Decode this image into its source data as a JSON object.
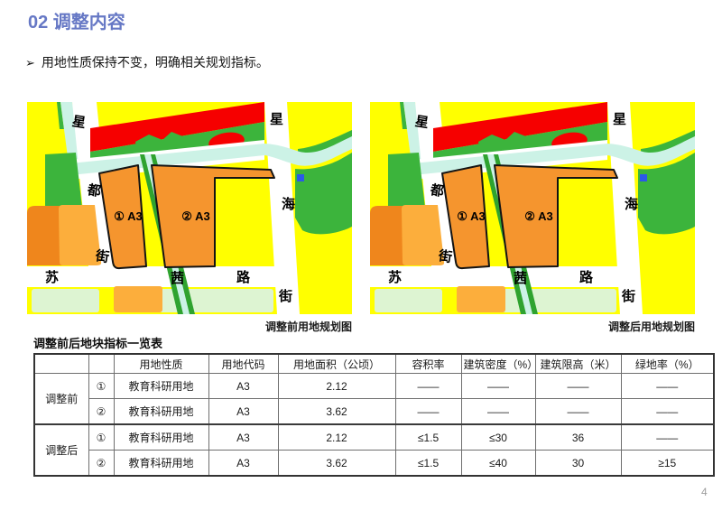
{
  "title": "02 调整内容",
  "bullet": {
    "arrow": "➢",
    "text": "用地性质保持不变，明确相关规划指标。"
  },
  "maps": {
    "before_caption": "调整前用地规划图",
    "after_caption": "调整后用地规划图",
    "street_labels": {
      "left_road": [
        "星",
        "都",
        "街"
      ],
      "right_road": [
        "星",
        "海",
        "街"
      ],
      "bottom_road": [
        "苏",
        "茜",
        "路"
      ]
    },
    "parcels": {
      "p1": "① A3",
      "p2": "② A3"
    },
    "colors": {
      "yellow": "#FFFF00",
      "red": "#F60000",
      "green": "#3CB43C",
      "stream_green": "#2FA32F",
      "cyan": "#CCF2E6",
      "orange_parcel": "#F5952E",
      "orange_dark": "#EF861C",
      "amber": "#FCAE3C",
      "pale_green": "#DDF4D2",
      "blue_square": "#2B59E8",
      "road_white": "#FFFFFF",
      "parcel_outline": "#141414"
    }
  },
  "table": {
    "title": "调整前后地块指标一览表",
    "headers": [
      "用地性质",
      "用地代码",
      "用地面积（公顷）",
      "容积率",
      "建筑密度（%）",
      "建筑限高（米）",
      "绿地率（%）"
    ],
    "groups": [
      {
        "label": "调整前",
        "rows": [
          {
            "num": "①",
            "cells": [
              "教育科研用地",
              "A3",
              "2.12",
              "——",
              "——",
              "——",
              "——"
            ]
          },
          {
            "num": "②",
            "cells": [
              "教育科研用地",
              "A3",
              "3.62",
              "——",
              "——",
              "——",
              "——"
            ]
          }
        ]
      },
      {
        "label": "调整后",
        "rows": [
          {
            "num": "①",
            "cells": [
              "教育科研用地",
              "A3",
              "2.12",
              "≤1.5",
              "≤30",
              "36",
              "——"
            ]
          },
          {
            "num": "②",
            "cells": [
              "教育科研用地",
              "A3",
              "3.62",
              "≤1.5",
              "≤40",
              "30",
              "≥15"
            ]
          }
        ]
      }
    ]
  },
  "page_number": "4"
}
